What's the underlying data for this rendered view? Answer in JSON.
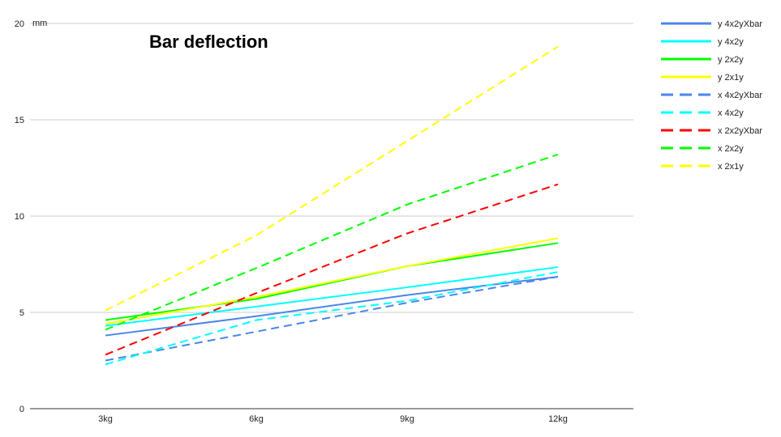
{
  "chart_data": {
    "type": "line",
    "title": "Bar deflection",
    "ylabel": "mm",
    "xlabel": "",
    "categories": [
      "3kg",
      "6kg",
      "9kg",
      "12kg"
    ],
    "ylim": [
      0,
      20
    ],
    "yticks": [
      "0",
      "5",
      "10",
      "15",
      "20"
    ],
    "grid": true,
    "legend_position": "right",
    "series": [
      {
        "name": "y 4x2yXbar",
        "color": "#4a86e8",
        "dash": false,
        "values": [
          3.8,
          4.8,
          5.9,
          6.85
        ]
      },
      {
        "name": "y 4x2y",
        "color": "#00ffff",
        "dash": false,
        "values": [
          4.3,
          5.3,
          6.3,
          7.35
        ]
      },
      {
        "name": "y 2x2y",
        "color": "#00ff00",
        "dash": false,
        "values": [
          4.6,
          5.7,
          7.4,
          8.6
        ]
      },
      {
        "name": "y 2x1y",
        "color": "#ffff00",
        "dash": false,
        "values": [
          4.4,
          5.8,
          7.4,
          8.85
        ]
      },
      {
        "name": "x 4x2yXbar",
        "color": "#4a86e8",
        "dash": true,
        "values": [
          2.5,
          4.0,
          5.5,
          6.85
        ]
      },
      {
        "name": "x 4x2y",
        "color": "#00ffff",
        "dash": true,
        "values": [
          2.3,
          4.6,
          5.6,
          7.1
        ]
      },
      {
        "name": "x 2x2yXbar",
        "color": "#ff0000",
        "dash": true,
        "values": [
          2.8,
          6.0,
          9.1,
          11.65
        ]
      },
      {
        "name": "x 2x2y",
        "color": "#00ff00",
        "dash": true,
        "values": [
          4.1,
          7.3,
          10.6,
          13.2
        ]
      },
      {
        "name": "x 2x1y",
        "color": "#ffff00",
        "dash": true,
        "values": [
          5.1,
          9.0,
          13.9,
          18.8
        ]
      }
    ]
  }
}
